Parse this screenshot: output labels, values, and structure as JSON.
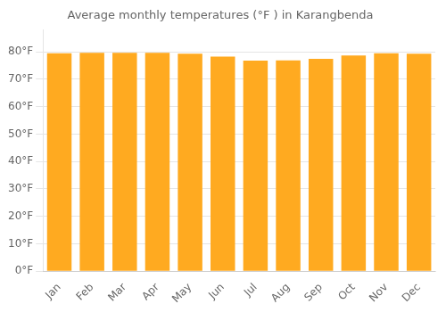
{
  "chart_data": {
    "type": "bar",
    "title": "Average monthly temperatures (°F ) in Karangbenda",
    "categories": [
      "Jan",
      "Feb",
      "Mar",
      "Apr",
      "May",
      "Jun",
      "Jul",
      "Aug",
      "Sep",
      "Oct",
      "Nov",
      "Dec"
    ],
    "values": [
      79.5,
      79.7,
      79.7,
      79.7,
      79.3,
      78.3,
      76.8,
      76.9,
      77.5,
      78.7,
      79.5,
      79.3
    ],
    "color": "#FFAA20",
    "ylim": [
      0,
      88
    ],
    "yticks": [
      {
        "value": 0,
        "label": "0°F"
      },
      {
        "value": 10,
        "label": "10°F"
      },
      {
        "value": 20,
        "label": "20°F"
      },
      {
        "value": 30,
        "label": "30°F"
      },
      {
        "value": 40,
        "label": "40°F"
      },
      {
        "value": 50,
        "label": "50°F"
      },
      {
        "value": 60,
        "label": "60°F"
      },
      {
        "value": 70,
        "label": "70°F"
      },
      {
        "value": 80,
        "label": "80°F"
      }
    ],
    "grid": true
  }
}
